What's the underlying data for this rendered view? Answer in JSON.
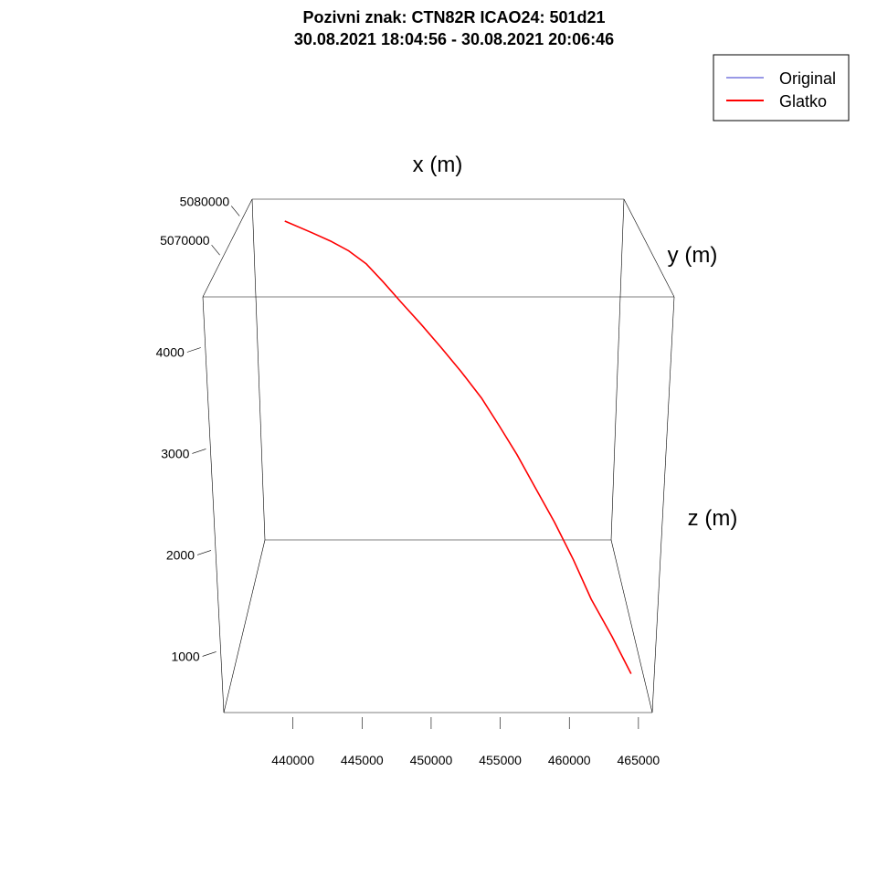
{
  "chart_data": {
    "type": "line",
    "title": "Pozivni znak: CTN82R    ICAO24: 501d21",
    "subtitle": "30.08.2021 18:04:56 - 30.08.2021 20:06:46",
    "xlabel": "x (m)",
    "ylabel": "y (m)",
    "zlabel": "z (m)",
    "xlim": [
      435000,
      466000
    ],
    "ylim": [
      5060000,
      5085000
    ],
    "zlim": [
      400,
      4500
    ],
    "x_ticks": [
      "440000",
      "445000",
      "450000",
      "455000",
      "460000",
      "465000"
    ],
    "y_ticks": [
      "5070000",
      "5080000"
    ],
    "z_ticks": [
      "1000",
      "2000",
      "3000",
      "4000"
    ],
    "legend_position": "top-right",
    "grid": false,
    "series": [
      {
        "name": "Original",
        "color": "#3333cc",
        "x": [
          438300,
          440500,
          442200,
          443600,
          445000,
          446300,
          447700,
          449200,
          450700,
          452200,
          453700,
          455000,
          456300,
          457600,
          459000,
          460400,
          461700,
          463200,
          464600
        ],
        "y": [
          5080500,
          5079000,
          5078000,
          5077000,
          5076000,
          5075000,
          5074000,
          5073000,
          5072000,
          5071000,
          5070000,
          5069000,
          5068000,
          5067000,
          5066000,
          5065000,
          5064000,
          5063000,
          5062000
        ],
        "z": [
          4450,
          4390,
          4330,
          4270,
          4170,
          4020,
          3840,
          3650,
          3450,
          3240,
          3010,
          2770,
          2520,
          2240,
          1940,
          1610,
          1270,
          960,
          650
        ]
      },
      {
        "name": "Glatko",
        "color": "#ff0000",
        "x": [
          438300,
          440500,
          442200,
          443600,
          445000,
          446300,
          447700,
          449200,
          450700,
          452200,
          453700,
          455000,
          456300,
          457600,
          459000,
          460400,
          461700,
          463200,
          464600
        ],
        "y": [
          5080500,
          5079000,
          5078000,
          5077000,
          5076000,
          5075000,
          5074000,
          5073000,
          5072000,
          5071000,
          5070000,
          5069000,
          5068000,
          5067000,
          5066000,
          5065000,
          5064000,
          5063000,
          5062000
        ],
        "z": [
          4450,
          4390,
          4330,
          4270,
          4170,
          4020,
          3840,
          3650,
          3450,
          3240,
          3010,
          2770,
          2520,
          2240,
          1940,
          1610,
          1270,
          960,
          650
        ]
      }
    ]
  }
}
